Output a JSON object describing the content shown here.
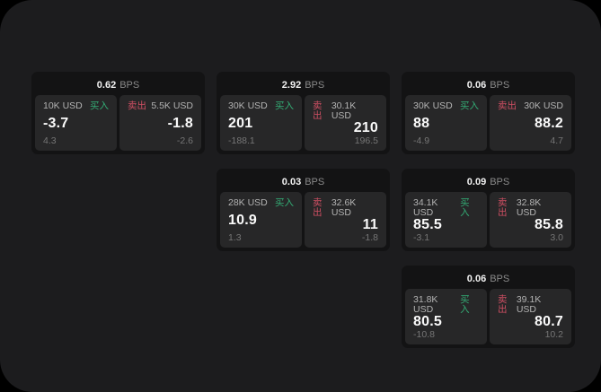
{
  "labels": {
    "bps": "BPS",
    "buy": "买入",
    "sell": "卖出"
  },
  "colors": {
    "page_bg": "#1c1c1e",
    "card_bg": "#131314",
    "panel_bg": "#272728",
    "buy_green": "#33ab74",
    "sell_red": "#cf4f63"
  },
  "cards": [
    {
      "bps": "0.62",
      "buy": {
        "amount": "10K USD",
        "value": "-3.7",
        "sub": "4.3"
      },
      "sell": {
        "amount": "5.5K USD",
        "value": "-1.8",
        "sub": "-2.6"
      }
    },
    {
      "bps": "2.92",
      "buy": {
        "amount": "30K USD",
        "value": "201",
        "sub": "-188.1"
      },
      "sell": {
        "amount": "30.1K USD",
        "value": "210",
        "sub": "196.5"
      }
    },
    {
      "bps": "0.06",
      "buy": {
        "amount": "30K USD",
        "value": "88",
        "sub": "-4.9"
      },
      "sell": {
        "amount": "30K USD",
        "value": "88.2",
        "sub": "4.7"
      }
    },
    {
      "bps": "0.03",
      "buy": {
        "amount": "28K USD",
        "value": "10.9",
        "sub": "1.3"
      },
      "sell": {
        "amount": "32.6K USD",
        "value": "11",
        "sub": "-1.8"
      }
    },
    {
      "bps": "0.09",
      "buy": {
        "amount": "34.1K USD",
        "value": "85.5",
        "sub": "-3.1"
      },
      "sell": {
        "amount": "32.8K USD",
        "value": "85.8",
        "sub": "3.0"
      }
    },
    {
      "bps": "0.06",
      "buy": {
        "amount": "31.8K USD",
        "value": "80.5",
        "sub": "-10.8"
      },
      "sell": {
        "amount": "39.1K USD",
        "value": "80.7",
        "sub": "10.2"
      }
    }
  ]
}
